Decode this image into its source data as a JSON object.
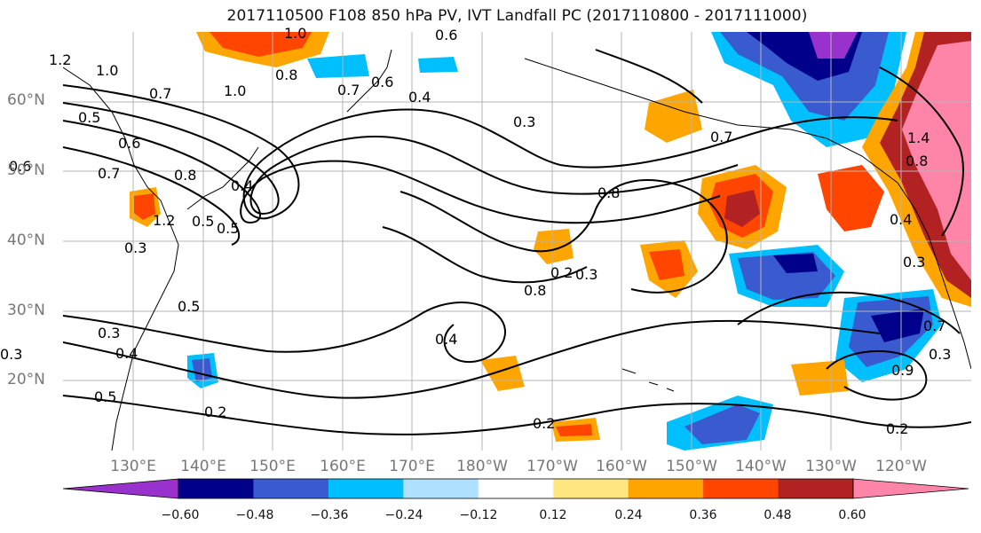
{
  "title": "2017110500 F108 850 hPa PV, IVT Landfall PC (2017110800 - 2017111000)",
  "lat_labels": [
    "60°N",
    "50°N",
    "40°N",
    "30°N",
    "20°N"
  ],
  "lon_labels": [
    "130°E",
    "140°E",
    "150°E",
    "160°E",
    "170°E",
    "180°W",
    "170°W",
    "160°W",
    "150°W",
    "140°W",
    "130°W",
    "120°W"
  ],
  "colorbar": {
    "ticks": [
      "−0.60",
      "−0.48",
      "−0.36",
      "−0.24",
      "−0.12",
      "0.12",
      "0.24",
      "0.36",
      "0.48",
      "0.60"
    ],
    "colors": [
      "#9932cc",
      "#00008b",
      "#3a5bd0",
      "#00bfff",
      "#b0e0ff",
      "#ffffff",
      "#ffe680",
      "#ffa500",
      "#ff4500",
      "#b22222",
      "#ff85a8"
    ]
  },
  "contour_labels": [
    "1.0",
    "1.2",
    "1.0",
    "0.6",
    "0.7",
    "0.6",
    "0.8",
    "1.0",
    "0.7",
    "0.4",
    "0.3",
    "0.5",
    "0.5",
    "0.6",
    "0.7",
    "0.8",
    "1.2",
    "0.4",
    "0.5",
    "0.3",
    "0.8",
    "0.7",
    "0.8",
    "0.5",
    "0.4",
    "0.3",
    "0.4",
    "0.2",
    "0.2",
    "0.2",
    "0.3",
    "0.2",
    "0.9",
    "0.3",
    "1.4",
    "0.4",
    "0.7",
    "0.8",
    "0.3",
    "0.5",
    "0.3",
    "0.6"
  ]
}
